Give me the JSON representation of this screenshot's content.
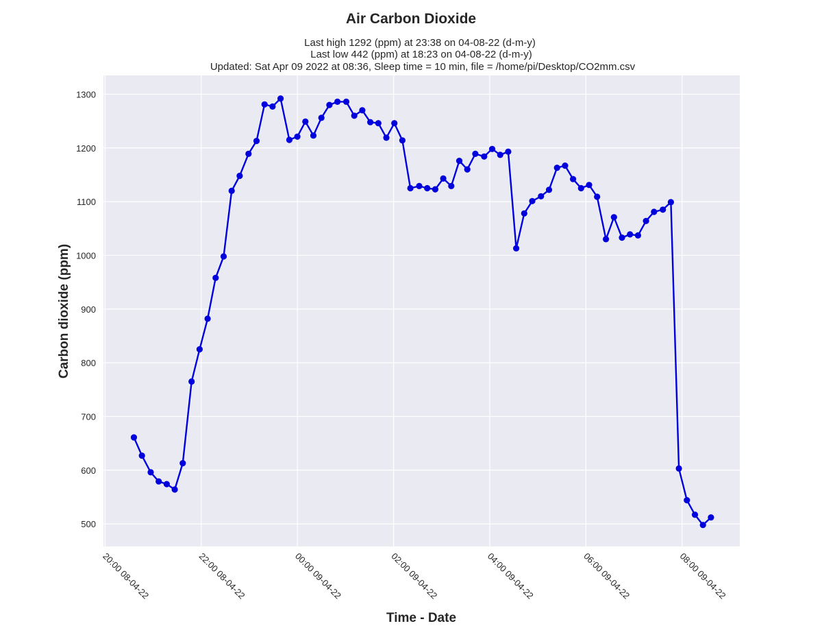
{
  "chart_data": {
    "type": "line",
    "title": "Air Carbon Dioxide",
    "subtitle_lines": [
      "Last high 1292 (ppm) at 23:38 on 04-08-22 (d-m-y)",
      "Last low 442 (ppm) at 18:23 on 04-08-22 (d-m-y)",
      "Updated: Sat Apr 09 2022 at 08:36, Sleep time = 10 min, file = /home/pi/Desktop/CO2mm.csv"
    ],
    "xlabel": "Time - Date",
    "ylabel": "Carbon dioxide (ppm)",
    "x_range": [
      "2022-04-08 19:58",
      "2022-04-09 09:12"
    ],
    "ylim": [
      458,
      1335
    ],
    "x_ticks": [
      {
        "time": "2022-04-08 20:00",
        "label": "20:00  08-04-22"
      },
      {
        "time": "2022-04-08 22:00",
        "label": "22:00  08-04-22"
      },
      {
        "time": "2022-04-09 00:00",
        "label": "00:00  09-04-22"
      },
      {
        "time": "2022-04-09 02:00",
        "label": "02:00  09-04-22"
      },
      {
        "time": "2022-04-09 04:00",
        "label": "04:00  09-04-22"
      },
      {
        "time": "2022-04-09 06:00",
        "label": "06:00  09-04-22"
      },
      {
        "time": "2022-04-09 08:00",
        "label": "08:00  09-04-22"
      }
    ],
    "y_ticks": [
      500,
      600,
      700,
      800,
      900,
      1000,
      1100,
      1200,
      1300
    ],
    "grid": true,
    "series": [
      {
        "color": "#0000dd",
        "points": [
          [
            "2022-04-08 20:36",
            661
          ],
          [
            "2022-04-08 20:46",
            627
          ],
          [
            "2022-04-08 20:57",
            596
          ],
          [
            "2022-04-08 21:07",
            579
          ],
          [
            "2022-04-08 21:17",
            574
          ],
          [
            "2022-04-08 21:27",
            564
          ],
          [
            "2022-04-08 21:37",
            613
          ],
          [
            "2022-04-08 21:48",
            765
          ],
          [
            "2022-04-08 21:58",
            825
          ],
          [
            "2022-04-08 22:08",
            882
          ],
          [
            "2022-04-08 22:18",
            958
          ],
          [
            "2022-04-08 22:28",
            998
          ],
          [
            "2022-04-08 22:38",
            1120
          ],
          [
            "2022-04-08 22:48",
            1148
          ],
          [
            "2022-04-08 22:59",
            1189
          ],
          [
            "2022-04-08 23:09",
            1213
          ],
          [
            "2022-04-08 23:19",
            1281
          ],
          [
            "2022-04-08 23:29",
            1277
          ],
          [
            "2022-04-08 23:39",
            1292
          ],
          [
            "2022-04-08 23:50",
            1215
          ],
          [
            "2022-04-09 00:00",
            1221
          ],
          [
            "2022-04-09 00:10",
            1249
          ],
          [
            "2022-04-09 00:20",
            1223
          ],
          [
            "2022-04-09 00:30",
            1256
          ],
          [
            "2022-04-09 00:40",
            1280
          ],
          [
            "2022-04-09 00:50",
            1286
          ],
          [
            "2022-04-09 01:01",
            1286
          ],
          [
            "2022-04-09 01:11",
            1260
          ],
          [
            "2022-04-09 01:21",
            1270
          ],
          [
            "2022-04-09 01:31",
            1248
          ],
          [
            "2022-04-09 01:41",
            1246
          ],
          [
            "2022-04-09 01:51",
            1219
          ],
          [
            "2022-04-09 02:01",
            1246
          ],
          [
            "2022-04-09 02:11",
            1214
          ],
          [
            "2022-04-09 02:21",
            1125
          ],
          [
            "2022-04-09 02:32",
            1129
          ],
          [
            "2022-04-09 02:42",
            1125
          ],
          [
            "2022-04-09 02:52",
            1123
          ],
          [
            "2022-04-09 03:02",
            1143
          ],
          [
            "2022-04-09 03:12",
            1129
          ],
          [
            "2022-04-09 03:22",
            1176
          ],
          [
            "2022-04-09 03:32",
            1160
          ],
          [
            "2022-04-09 03:42",
            1189
          ],
          [
            "2022-04-09 03:53",
            1184
          ],
          [
            "2022-04-09 04:03",
            1198
          ],
          [
            "2022-04-09 04:13",
            1187
          ],
          [
            "2022-04-09 04:23",
            1193
          ],
          [
            "2022-04-09 04:33",
            1013
          ],
          [
            "2022-04-09 04:43",
            1078
          ],
          [
            "2022-04-09 04:53",
            1101
          ],
          [
            "2022-04-09 05:04",
            1110
          ],
          [
            "2022-04-09 05:14",
            1122
          ],
          [
            "2022-04-09 05:24",
            1163
          ],
          [
            "2022-04-09 05:34",
            1167
          ],
          [
            "2022-04-09 05:44",
            1142
          ],
          [
            "2022-04-09 05:54",
            1125
          ],
          [
            "2022-04-09 06:04",
            1131
          ],
          [
            "2022-04-09 06:14",
            1109
          ],
          [
            "2022-04-09 06:25",
            1030
          ],
          [
            "2022-04-09 06:35",
            1071
          ],
          [
            "2022-04-09 06:45",
            1033
          ],
          [
            "2022-04-09 06:55",
            1039
          ],
          [
            "2022-04-09 07:05",
            1037
          ],
          [
            "2022-04-09 07:15",
            1064
          ],
          [
            "2022-04-09 07:25",
            1081
          ],
          [
            "2022-04-09 07:36",
            1085
          ],
          [
            "2022-04-09 07:46",
            1099
          ],
          [
            "2022-04-09 07:56",
            603
          ],
          [
            "2022-04-09 08:06",
            544
          ],
          [
            "2022-04-09 08:16",
            517
          ],
          [
            "2022-04-09 08:26",
            498
          ],
          [
            "2022-04-09 08:36",
            512
          ]
        ]
      }
    ]
  }
}
